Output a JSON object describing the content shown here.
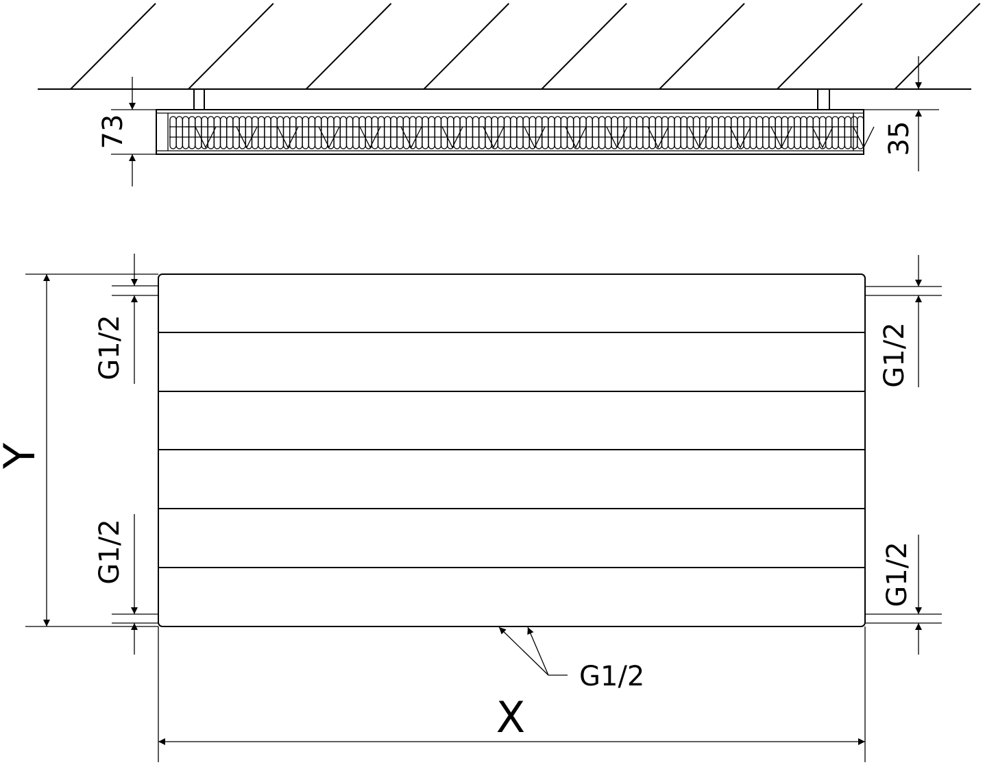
{
  "dimensions": {
    "depth_label": "73",
    "wall_gap_label": "35",
    "height_label": "Y",
    "width_label": "X",
    "connection_left_top": "G1/2",
    "connection_left_bottom": "G1/2",
    "connection_right_top": "G1/2",
    "connection_right_bottom": "G1/2",
    "connection_bottom": "G1/2"
  },
  "front_view": {
    "panel_grooves": 5
  },
  "colors": {
    "line": "#000000",
    "background": "#ffffff"
  }
}
